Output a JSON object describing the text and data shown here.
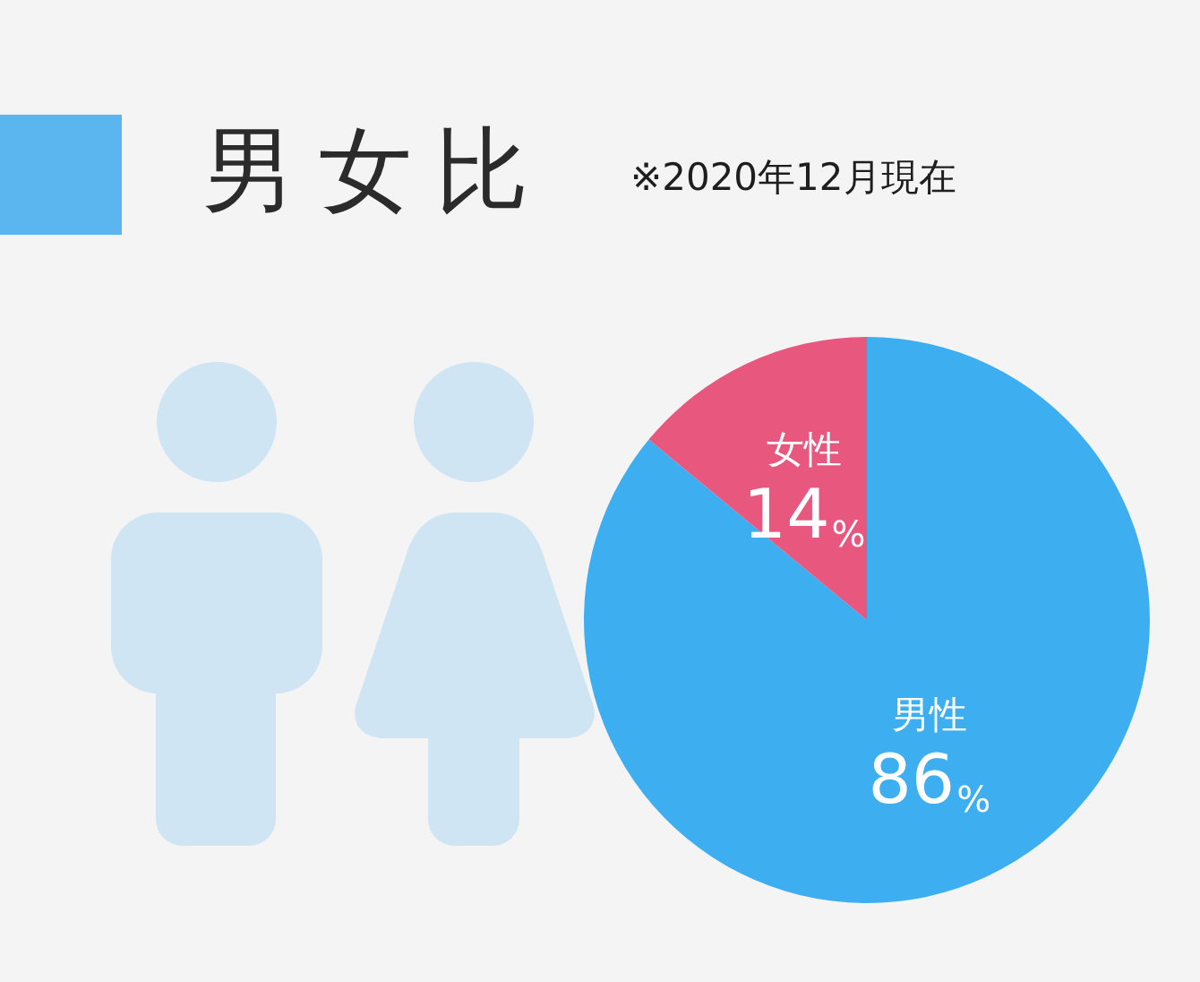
{
  "chart_data": {
    "type": "pie",
    "title": "男女比",
    "subtitle": "※2020年12月現在",
    "categories": [
      "男性",
      "女性"
    ],
    "values": [
      86,
      14
    ],
    "colors": [
      "#3daeef",
      "#e8577e"
    ],
    "value_labels": [
      "86%",
      "14%"
    ]
  }
}
